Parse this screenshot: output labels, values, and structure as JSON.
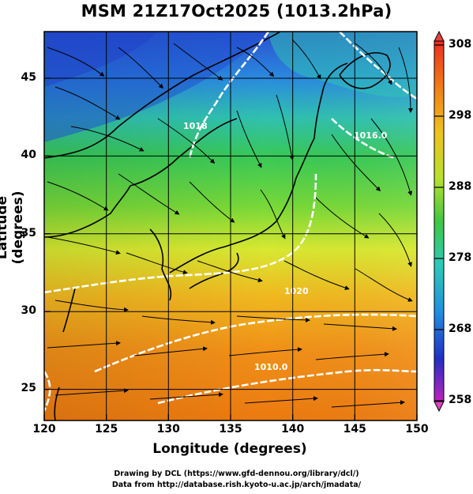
{
  "title": "MSM 21Z17Oct2025 (1013.2hPa)",
  "map": {
    "xlabel": "Longitude (degrees)",
    "ylabel": "Latitude  (degrees)",
    "lon_range": [
      120,
      150
    ],
    "lat_range": [
      23,
      48
    ],
    "x_ticks": [
      "120",
      "125",
      "130",
      "135",
      "140",
      "145",
      "150"
    ],
    "y_ticks": [
      "25",
      "30",
      "35",
      "40",
      "45"
    ],
    "contour_labels": [
      "1020",
      "1018",
      "1016.0",
      "1010.0"
    ]
  },
  "colorbar": {
    "ticks": [
      "308",
      "298",
      "288",
      "278",
      "268",
      "258"
    ],
    "range": [
      258,
      308
    ]
  },
  "credits": {
    "line1": "Drawing by DCL (https://www.gfd-dennou.org/library/dcl/)",
    "line2": "Data from http://database.rish.kyoto-u.ac.jp/arch/jmadata/"
  },
  "colors": {
    "background": "#ffffff",
    "contour": "#ffffff",
    "streamline": "#000000",
    "warm": "#f08010",
    "mid": "#40c840",
    "cold": "#2050d0"
  }
}
